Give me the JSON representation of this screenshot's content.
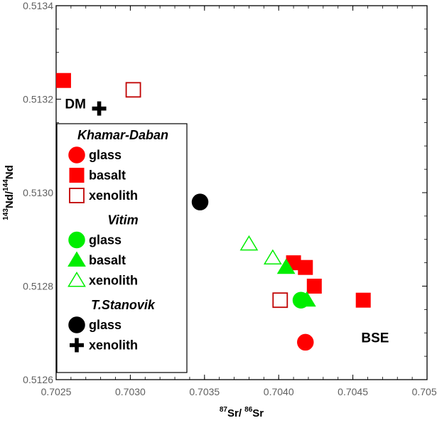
{
  "chart_data": {
    "type": "scatter",
    "title": "",
    "xlabel": {
      "sup1": "87",
      "base1": "Sr/ ",
      "sup2": "86",
      "base2": "Sr"
    },
    "ylabel": {
      "sup1": "143",
      "base1": "Nd/",
      "sup2": "144",
      "base2": "Nd"
    },
    "xlim": [
      0.7025,
      0.705
    ],
    "ylim": [
      0.5126,
      0.5134
    ],
    "xticks": [
      "0.7025",
      "0.7030",
      "0.7035",
      "0.7040",
      "0.7045",
      "0.7050"
    ],
    "yticks": [
      "0.5126",
      "0.5128",
      "0.5130",
      "0.5132",
      "0.5134"
    ],
    "grid": false,
    "legend_placement": "left",
    "legend": [
      {
        "group": "Khamar-Daban",
        "items": [
          {
            "label": "glass",
            "marker": "circle",
            "color": "#ff0000",
            "fill": true
          },
          {
            "label": "basalt",
            "marker": "square",
            "color": "#ff0000",
            "fill": true
          },
          {
            "label": "xenolith",
            "marker": "square",
            "color": "#c00000",
            "fill": false
          }
        ]
      },
      {
        "group": "Vitim",
        "items": [
          {
            "label": "glass",
            "marker": "circle",
            "color": "#00ee00",
            "fill": true
          },
          {
            "label": "basalt",
            "marker": "triangle",
            "color": "#00ee00",
            "fill": true
          },
          {
            "label": "xenolith",
            "marker": "triangle",
            "color": "#00ee00",
            "fill": false
          }
        ]
      },
      {
        "group": "T.Stanovik",
        "items": [
          {
            "label": "glass",
            "marker": "circle",
            "color": "#000000",
            "fill": true
          },
          {
            "label": "xenolith",
            "marker": "plus",
            "color": "#000000",
            "fill": true
          }
        ]
      }
    ],
    "annotations": [
      {
        "text": "DM",
        "x": 0.70263,
        "y": 0.51318
      },
      {
        "text": "BSE",
        "x": 0.70465,
        "y": 0.51268
      }
    ],
    "series": [
      {
        "marker": "square",
        "color": "#ff0000",
        "fill": true,
        "points": [
          [
            0.70255,
            0.51324
          ],
          [
            0.7041,
            0.51285
          ],
          [
            0.70418,
            0.51284
          ],
          [
            0.70424,
            0.5128
          ],
          [
            0.70457,
            0.51277
          ]
        ]
      },
      {
        "marker": "square",
        "color": "#c00000",
        "fill": false,
        "points": [
          [
            0.70302,
            0.51322
          ],
          [
            0.70401,
            0.51277
          ]
        ]
      },
      {
        "marker": "circle",
        "color": "#ff0000",
        "fill": true,
        "points": [
          [
            0.70418,
            0.51268
          ]
        ]
      },
      {
        "marker": "circle",
        "color": "#00ee00",
        "fill": true,
        "points": [
          [
            0.70415,
            0.51277
          ]
        ]
      },
      {
        "marker": "triangle",
        "color": "#00ee00",
        "fill": true,
        "points": [
          [
            0.70405,
            0.51284
          ],
          [
            0.70419,
            0.51277
          ]
        ]
      },
      {
        "marker": "triangle",
        "color": "#00ee00",
        "fill": false,
        "points": [
          [
            0.7038,
            0.51289
          ],
          [
            0.70396,
            0.51286
          ]
        ]
      },
      {
        "marker": "circle",
        "color": "#000000",
        "fill": true,
        "points": [
          [
            0.70347,
            0.51298
          ]
        ]
      },
      {
        "marker": "plus",
        "color": "#000000",
        "fill": true,
        "points": [
          [
            0.70279,
            0.51318
          ]
        ]
      }
    ]
  }
}
